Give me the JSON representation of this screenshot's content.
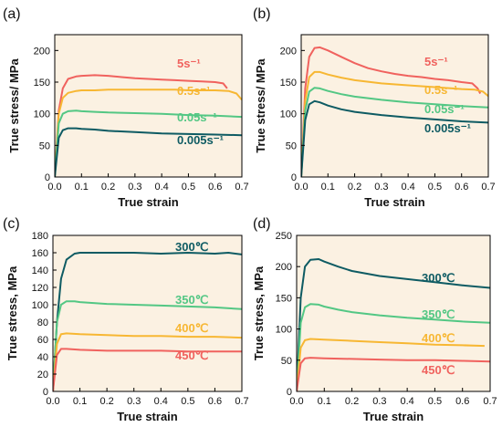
{
  "chart_data": [
    {
      "type": "line",
      "panel_label": "(a)",
      "xlabel": "True strain",
      "ylabel": "True stress/ MPa",
      "xlim": [
        0.0,
        0.7
      ],
      "ylim": [
        0,
        225
      ],
      "xticks": [
        "0.0",
        "0.1",
        "0.2",
        "0.3",
        "0.4",
        "0.5",
        "0.6",
        "0.7"
      ],
      "yticks": [
        "0",
        "50",
        "100",
        "150",
        "200"
      ],
      "background": "#fbf1e2",
      "grid": false,
      "series": [
        {
          "name": "5s⁻¹",
          "color": "#f0625e",
          "x": [
            0.0,
            0.015,
            0.03,
            0.05,
            0.08,
            0.1,
            0.15,
            0.2,
            0.25,
            0.3,
            0.35,
            0.4,
            0.45,
            0.5,
            0.55,
            0.6,
            0.63,
            0.645
          ],
          "y": [
            0,
            105,
            140,
            155,
            159,
            160,
            161,
            160,
            158,
            156,
            155,
            154,
            153,
            152,
            151,
            150,
            148,
            140
          ]
        },
        {
          "name": "0.5s⁻¹",
          "color": "#f7b733",
          "x": [
            0.0,
            0.015,
            0.03,
            0.05,
            0.08,
            0.1,
            0.15,
            0.2,
            0.25,
            0.3,
            0.35,
            0.4,
            0.45,
            0.5,
            0.55,
            0.6,
            0.65,
            0.68,
            0.7
          ],
          "y": [
            0,
            100,
            125,
            133,
            136,
            137,
            137,
            138,
            138,
            138,
            138,
            138,
            138,
            137,
            137,
            137,
            136,
            132,
            122
          ]
        },
        {
          "name": "0.05s⁻¹",
          "color": "#53c784",
          "x": [
            0.0,
            0.015,
            0.03,
            0.05,
            0.08,
            0.1,
            0.15,
            0.2,
            0.3,
            0.4,
            0.5,
            0.6,
            0.7
          ],
          "y": [
            0,
            85,
            100,
            104,
            105,
            104,
            103,
            102,
            101,
            100,
            98,
            97,
            95
          ]
        },
        {
          "name": "0.005s⁻¹",
          "color": "#0e5b63",
          "x": [
            0.0,
            0.015,
            0.03,
            0.05,
            0.08,
            0.1,
            0.15,
            0.2,
            0.3,
            0.4,
            0.5,
            0.6,
            0.7
          ],
          "y": [
            0,
            62,
            74,
            77,
            77,
            76,
            75,
            73,
            71,
            69,
            68,
            67,
            66
          ]
        }
      ]
    },
    {
      "type": "line",
      "panel_label": "(b)",
      "xlabel": "True strain",
      "ylabel": "True stress/ MPa",
      "xlim": [
        0.0,
        0.7
      ],
      "ylim": [
        0,
        225
      ],
      "xticks": [
        "0.0",
        "0.1",
        "0.2",
        "0.3",
        "0.4",
        "0.5",
        "0.6",
        "0.7"
      ],
      "yticks": [
        "0",
        "50",
        "100",
        "150",
        "200"
      ],
      "background": "#fbf1e2",
      "grid": false,
      "series": [
        {
          "name": "5s⁻¹",
          "color": "#f0625e",
          "x": [
            0.0,
            0.015,
            0.03,
            0.05,
            0.07,
            0.1,
            0.15,
            0.2,
            0.25,
            0.3,
            0.35,
            0.4,
            0.45,
            0.5,
            0.55,
            0.6,
            0.64,
            0.66,
            0.67
          ],
          "y": [
            0,
            140,
            190,
            204,
            205,
            200,
            190,
            180,
            172,
            167,
            163,
            160,
            158,
            155,
            153,
            150,
            148,
            140,
            132
          ]
        },
        {
          "name": "0.5s⁻¹",
          "color": "#f7b733",
          "x": [
            0.0,
            0.015,
            0.03,
            0.05,
            0.07,
            0.1,
            0.15,
            0.2,
            0.3,
            0.4,
            0.5,
            0.6,
            0.65,
            0.68,
            0.7
          ],
          "y": [
            0,
            120,
            158,
            166,
            166,
            162,
            157,
            153,
            148,
            145,
            142,
            139,
            138,
            135,
            128
          ]
        },
        {
          "name": "0.05s⁻¹",
          "color": "#53c784",
          "x": [
            0.0,
            0.015,
            0.03,
            0.05,
            0.07,
            0.1,
            0.15,
            0.2,
            0.3,
            0.4,
            0.5,
            0.6,
            0.7
          ],
          "y": [
            0,
            105,
            135,
            141,
            140,
            136,
            131,
            127,
            122,
            118,
            115,
            112,
            110
          ]
        },
        {
          "name": "0.005s⁻¹",
          "color": "#0e5b63",
          "x": [
            0.0,
            0.015,
            0.03,
            0.05,
            0.07,
            0.1,
            0.15,
            0.2,
            0.3,
            0.4,
            0.5,
            0.6,
            0.7
          ],
          "y": [
            0,
            90,
            115,
            120,
            118,
            113,
            107,
            103,
            98,
            94,
            91,
            88,
            86
          ]
        }
      ]
    },
    {
      "type": "line",
      "panel_label": "(c)",
      "xlabel": "True strain",
      "ylabel": "True stress, MPa",
      "xlim": [
        0.0,
        0.7
      ],
      "ylim": [
        0,
        180
      ],
      "xticks": [
        "0.0",
        "0.1",
        "0.2",
        "0.3",
        "0.4",
        "0.5",
        "0.6",
        "0.7"
      ],
      "yticks": [
        "0",
        "20",
        "40",
        "60",
        "80",
        "100",
        "120",
        "140",
        "160",
        "180"
      ],
      "background": "#fbf1e2",
      "grid": false,
      "series": [
        {
          "name": "300℃",
          "color": "#0e5b63",
          "x": [
            0.0,
            0.015,
            0.03,
            0.05,
            0.08,
            0.1,
            0.15,
            0.2,
            0.3,
            0.4,
            0.5,
            0.6,
            0.65,
            0.7
          ],
          "y": [
            0,
            80,
            130,
            152,
            159,
            160,
            160,
            160,
            160,
            159,
            160,
            159,
            160,
            158
          ]
        },
        {
          "name": "350℃",
          "color": "#53c784",
          "x": [
            0.0,
            0.015,
            0.03,
            0.05,
            0.08,
            0.1,
            0.15,
            0.2,
            0.3,
            0.4,
            0.5,
            0.6,
            0.7
          ],
          "y": [
            0,
            80,
            100,
            104,
            104,
            103,
            102,
            101,
            100,
            99,
            98,
            97,
            95
          ]
        },
        {
          "name": "400℃",
          "color": "#f7b733",
          "x": [
            0.0,
            0.015,
            0.03,
            0.05,
            0.1,
            0.2,
            0.3,
            0.4,
            0.5,
            0.6,
            0.7
          ],
          "y": [
            0,
            55,
            66,
            67,
            66,
            65,
            64,
            64,
            63,
            63,
            62
          ]
        },
        {
          "name": "450℃",
          "color": "#f0625e",
          "x": [
            0.0,
            0.015,
            0.03,
            0.05,
            0.1,
            0.2,
            0.3,
            0.4,
            0.5,
            0.6,
            0.7
          ],
          "y": [
            0,
            42,
            49,
            49,
            48,
            47,
            47,
            47,
            46,
            46,
            46
          ]
        }
      ]
    },
    {
      "type": "line",
      "panel_label": "(d)",
      "xlabel": "True strain",
      "ylabel": "True stress, MPa",
      "xlim": [
        0.0,
        0.7
      ],
      "ylim": [
        0,
        250
      ],
      "xticks": [
        "0.0",
        "0.1",
        "0.2",
        "0.3",
        "0.4",
        "0.5",
        "0.6",
        "0.7"
      ],
      "yticks": [
        "0",
        "50",
        "100",
        "150",
        "200",
        "250"
      ],
      "background": "#fbf1e2",
      "grid": false,
      "series": [
        {
          "name": "300℃",
          "color": "#0e5b63",
          "x": [
            0.0,
            0.015,
            0.03,
            0.05,
            0.08,
            0.1,
            0.15,
            0.2,
            0.3,
            0.4,
            0.5,
            0.6,
            0.7
          ],
          "y": [
            0,
            150,
            200,
            211,
            212,
            208,
            200,
            193,
            185,
            180,
            175,
            170,
            166
          ]
        },
        {
          "name": "350℃",
          "color": "#53c784",
          "x": [
            0.0,
            0.015,
            0.03,
            0.05,
            0.08,
            0.1,
            0.15,
            0.2,
            0.3,
            0.4,
            0.5,
            0.6,
            0.7
          ],
          "y": [
            0,
            110,
            135,
            140,
            139,
            136,
            131,
            127,
            122,
            118,
            115,
            112,
            110
          ]
        },
        {
          "name": "400℃",
          "color": "#f7b733",
          "x": [
            0.0,
            0.015,
            0.03,
            0.05,
            0.1,
            0.2,
            0.3,
            0.4,
            0.5,
            0.6,
            0.68
          ],
          "y": [
            0,
            70,
            82,
            84,
            83,
            81,
            79,
            77,
            75,
            74,
            73
          ]
        },
        {
          "name": "450℃",
          "color": "#f0625e",
          "x": [
            0.0,
            0.015,
            0.03,
            0.05,
            0.1,
            0.2,
            0.3,
            0.4,
            0.5,
            0.6,
            0.7
          ],
          "y": [
            0,
            45,
            53,
            54,
            53,
            52,
            51,
            50,
            50,
            49,
            48
          ]
        }
      ]
    }
  ]
}
